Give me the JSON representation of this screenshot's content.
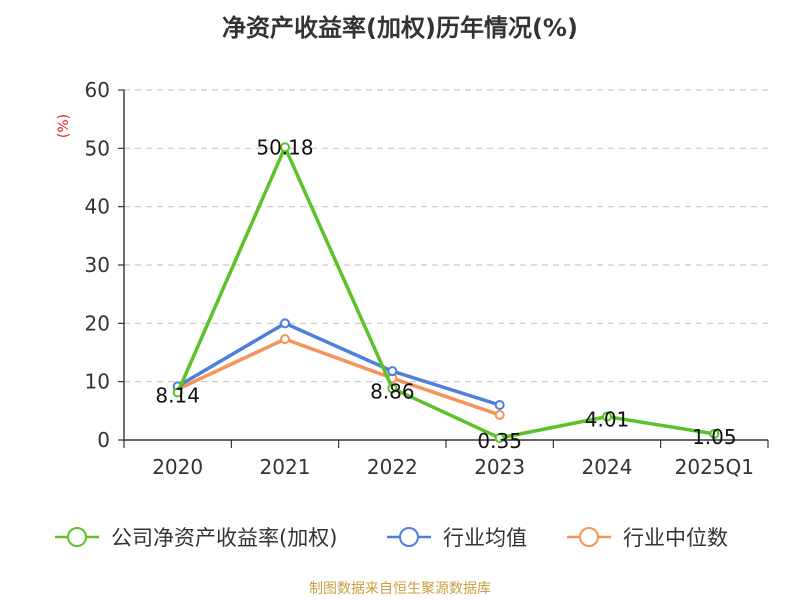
{
  "chart_data": {
    "type": "line",
    "title": "净资产收益率(加权)历年情况(%)",
    "ylabel": "(%)",
    "xlabel": "",
    "categories": [
      "2020",
      "2021",
      "2022",
      "2023",
      "2024",
      "2025Q1"
    ],
    "ylim": [
      0,
      60
    ],
    "yticks": [
      0,
      10,
      20,
      30,
      40,
      50,
      60
    ],
    "grid": true,
    "legend_position": "bottom",
    "series": [
      {
        "name": "公司净资产收益率(加权)",
        "color": "#5cc12a",
        "values": [
          8.14,
          50.18,
          8.86,
          0.35,
          4.01,
          1.05
        ],
        "labels": [
          "8.14",
          "50.18",
          "8.86",
          "0.35",
          "4.01",
          "1.05"
        ]
      },
      {
        "name": "行业均值",
        "color": "#4e7fdb",
        "values": [
          9.2,
          20.0,
          11.8,
          6.0,
          null,
          null
        ]
      },
      {
        "name": "行业中位数",
        "color": "#f5935a",
        "values": [
          8.7,
          17.3,
          10.6,
          4.3,
          null,
          null
        ]
      }
    ]
  },
  "colors": {
    "axis": "#333333",
    "grid": "#c8c8c8",
    "ylabel": "#e02020"
  },
  "footer": {
    "source": "制图数据来自恒生聚源数据库"
  }
}
